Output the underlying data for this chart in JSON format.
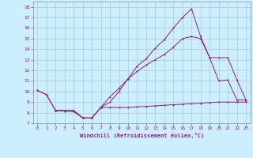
{
  "xlabel": "Windchill (Refroidissement éolien,°C)",
  "background_color": "#cceeff",
  "grid_color": "#aacccc",
  "line_color": "#882288",
  "xlim": [
    -0.5,
    23.5
  ],
  "ylim": [
    7.0,
    18.5
  ],
  "xticks": [
    0,
    1,
    2,
    3,
    4,
    5,
    6,
    7,
    8,
    9,
    10,
    11,
    12,
    13,
    14,
    15,
    16,
    17,
    18,
    19,
    20,
    21,
    22,
    23
  ],
  "yticks": [
    7,
    8,
    9,
    10,
    11,
    12,
    13,
    14,
    15,
    16,
    17,
    18
  ],
  "line1_x": [
    0,
    1,
    2,
    3,
    4,
    5,
    6,
    7,
    8,
    9,
    10,
    11,
    12,
    13,
    14,
    15,
    16,
    17,
    18,
    19,
    20,
    21,
    22,
    23
  ],
  "line1_y": [
    10.1,
    9.7,
    8.2,
    8.2,
    8.2,
    7.5,
    7.5,
    8.5,
    9.0,
    10.0,
    11.2,
    12.4,
    13.1,
    14.1,
    14.9,
    16.0,
    17.0,
    17.8,
    15.2,
    13.2,
    11.0,
    11.1,
    9.2,
    9.2
  ],
  "line2_x": [
    0,
    1,
    2,
    3,
    4,
    5,
    6,
    7,
    8,
    9,
    10,
    11,
    12,
    13,
    14,
    15,
    16,
    17,
    18,
    19,
    20,
    21,
    22,
    23
  ],
  "line2_y": [
    10.1,
    9.7,
    8.2,
    8.15,
    8.1,
    7.5,
    7.5,
    8.5,
    8.5,
    8.5,
    8.5,
    8.55,
    8.6,
    8.65,
    8.7,
    8.75,
    8.8,
    8.85,
    8.9,
    8.95,
    9.0,
    9.0,
    9.0,
    9.0
  ],
  "line3_x": [
    2,
    3,
    4,
    5,
    6,
    7,
    8,
    9,
    10,
    11,
    12,
    13,
    14,
    15,
    16,
    17,
    18,
    19,
    20,
    21,
    22,
    23
  ],
  "line3_y": [
    8.2,
    8.2,
    8.2,
    7.5,
    7.5,
    8.5,
    9.5,
    10.3,
    11.2,
    11.9,
    12.5,
    13.0,
    13.5,
    14.2,
    15.0,
    15.2,
    15.0,
    13.2,
    13.2,
    13.2,
    11.1,
    9.2
  ]
}
